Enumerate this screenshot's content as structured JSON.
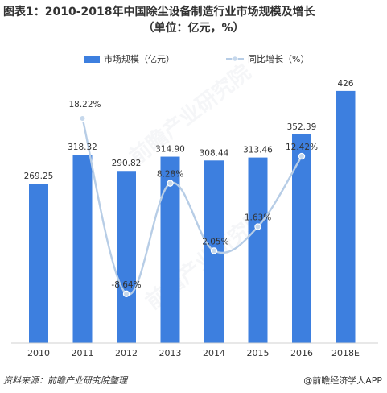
{
  "page": {
    "title_line1": "图表1：2010-2018年中国除尘设备制造行业市场规模及增长",
    "title_line2": "（单位：亿元，%）",
    "source": "资料来源：前瞻产业研究院整理",
    "brand": "@前瞻经济学人APP",
    "watermark": "前瞻产业研究院"
  },
  "chart_data": {
    "type": "bar",
    "categories": [
      "2010",
      "2011",
      "2012",
      "2013",
      "2014",
      "2015",
      "2016",
      "2018E"
    ],
    "series": [
      {
        "name": "市场规模（亿元）",
        "kind": "bar",
        "values": [
          269.25,
          318.32,
          290.82,
          314.9,
          308.44,
          313.46,
          352.39,
          426
        ],
        "labels": [
          "269.25",
          "318.32",
          "290.82",
          "314.90",
          "308.44",
          "313.46",
          "352.39",
          "426"
        ],
        "color": "#3d7fdf"
      },
      {
        "name": "同比增长（%）",
        "kind": "line",
        "values": [
          null,
          18.22,
          -8.64,
          8.28,
          -2.05,
          1.63,
          12.42,
          null
        ],
        "labels": [
          "",
          "18.22%",
          "-8.64%",
          "8.28%",
          "-2.05%",
          "1.63%",
          "12.42%",
          ""
        ],
        "color": "#b7cde6",
        "marker_color": "#c6d8ec"
      }
    ],
    "legend_position": "top",
    "grid": false
  }
}
